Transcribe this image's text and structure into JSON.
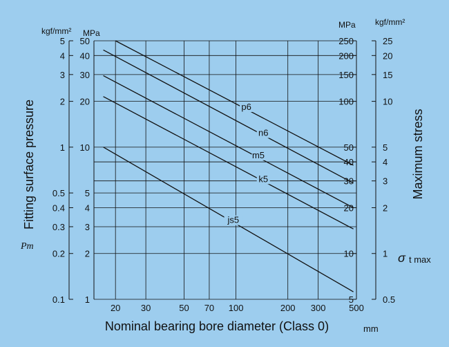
{
  "chart_data": {
    "type": "line",
    "xscale": "log",
    "yscale": "log",
    "xlabel": "Nominal bearing bore diameter (Class 0)",
    "xunit": "mm",
    "xlim": [
      15,
      500
    ],
    "xticks": [
      20,
      30,
      50,
      70,
      100,
      200,
      300,
      500
    ],
    "ylabel": "Fitting surface pressure",
    "ysymbol": "Pm",
    "y_left_inner_unit": "MPa",
    "y_left_outer_unit": "kgf/mm²",
    "ylim": [
      1,
      50
    ],
    "y_left_inner_ticks": [
      1,
      2,
      3,
      4,
      5,
      10,
      20,
      30,
      40,
      50
    ],
    "y_left_outer_ticks": [
      "0.1",
      "0.2",
      "0.3",
      "0.4",
      "0.5",
      "1",
      "2",
      "3",
      "4",
      "5"
    ],
    "y_right_label": "Maximum stress",
    "y_right_symbol_main": "σ",
    "y_right_symbol_sub": "t max",
    "y_right_inner_unit": "MPa",
    "y_right_outer_unit": "kgf/mm²",
    "y_right_inner_ticks": [
      5,
      10,
      20,
      30,
      40,
      50,
      100,
      150,
      200,
      250
    ],
    "y_right_outer_ticks": [
      "0.5",
      "1",
      "2",
      "3",
      "4",
      "5",
      "10",
      "15",
      "20",
      "25"
    ],
    "grid": true,
    "series": [
      {
        "name": "js5",
        "x": [
          17,
          480
        ],
        "y": [
          10,
          1.12
        ]
      },
      {
        "name": "k5",
        "x": [
          17,
          480
        ],
        "y": [
          21.5,
          2.9
        ]
      },
      {
        "name": "m5",
        "x": [
          17,
          480
        ],
        "y": [
          29.5,
          4.0
        ]
      },
      {
        "name": "n6",
        "x": [
          17,
          480
        ],
        "y": [
          43.5,
          5.8
        ]
      },
      {
        "name": "p6",
        "x": [
          20,
          480
        ],
        "y": [
          50,
          7.6
        ]
      }
    ]
  }
}
